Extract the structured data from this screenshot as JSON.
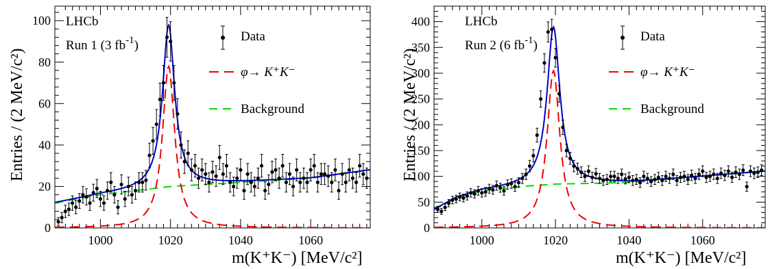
{
  "chart_data": [
    {
      "type": "scatter",
      "experiment_label": "LHCb",
      "run_label_text": "Run 1 (3 fb",
      "run_label_exp": "-1",
      "run_label_close": ")",
      "ylabel": "Entries / (2 MeV/c²)",
      "xlabel": "m(K⁺K⁻) [MeV/c²]",
      "xlim": [
        987,
        1077
      ],
      "ylim": [
        0,
        107
      ],
      "xticks": [
        1000,
        1020,
        1040,
        1060
      ],
      "yticks": [
        0,
        20,
        40,
        60,
        80,
        100
      ],
      "legend": {
        "data": "Data",
        "signal": "φ→ K⁺K⁻",
        "background": "Background"
      },
      "colors": {
        "data": "#000000",
        "total": "#0000cc",
        "signal": "#ee0000",
        "background": "#00dd00"
      },
      "points": {
        "x": [
          988,
          989,
          990,
          991,
          992,
          993,
          994,
          995,
          996,
          997,
          998,
          999,
          1000,
          1001,
          1002,
          1003,
          1004,
          1005,
          1006,
          1007,
          1008,
          1009,
          1010,
          1011,
          1012,
          1013,
          1014,
          1015,
          1016,
          1017,
          1018,
          1019,
          1020,
          1021,
          1022,
          1023,
          1024,
          1025,
          1026,
          1027,
          1028,
          1029,
          1030,
          1031,
          1032,
          1033,
          1034,
          1035,
          1036,
          1037,
          1038,
          1039,
          1040,
          1041,
          1042,
          1043,
          1044,
          1045,
          1046,
          1047,
          1048,
          1049,
          1050,
          1051,
          1052,
          1053,
          1054,
          1055,
          1056,
          1057,
          1058,
          1059,
          1060,
          1061,
          1062,
          1063,
          1064,
          1065,
          1066,
          1067,
          1068,
          1069,
          1070,
          1071,
          1072,
          1073,
          1074,
          1075,
          1076
        ],
        "y": [
          3,
          5,
          8,
          9,
          12,
          10,
          13,
          16,
          15,
          12,
          17,
          19,
          14,
          12,
          18,
          22,
          16,
          10,
          21,
          14,
          20,
          16,
          18,
          22,
          22,
          23,
          35,
          42,
          50,
          62,
          70,
          92,
          90,
          70,
          55,
          40,
          32,
          36,
          28,
          30,
          24,
          28,
          26,
          22,
          27,
          25,
          34,
          26,
          30,
          22,
          20,
          24,
          28,
          18,
          26,
          22,
          20,
          24,
          30,
          18,
          21,
          27,
          28,
          24,
          30,
          22,
          26,
          20,
          28,
          22,
          24,
          22,
          28,
          30,
          22,
          26,
          26,
          25,
          22,
          28,
          18,
          26,
          22,
          28,
          24,
          22,
          30,
          26,
          24
        ],
        "err": [
          2,
          2.5,
          3,
          3,
          3.5,
          3.2,
          3.6,
          4,
          3.9,
          3.5,
          4.1,
          4.4,
          3.7,
          3.5,
          4.2,
          4.7,
          4,
          3.2,
          4.6,
          3.7,
          4.5,
          4,
          4.2,
          4.7,
          4.7,
          4.8,
          5.9,
          6.5,
          7.1,
          7.9,
          8.4,
          9.6,
          9.5,
          8.4,
          7.4,
          6.3,
          5.7,
          6,
          5.3,
          5.5,
          4.9,
          5.3,
          5.1,
          4.7,
          5.2,
          5,
          5.8,
          5.1,
          5.5,
          4.7,
          4.5,
          4.9,
          5.3,
          4.2,
          5.1,
          4.7,
          4.5,
          4.9,
          5.5,
          4.2,
          4.6,
          5.2,
          5.3,
          4.9,
          5.5,
          4.7,
          5.1,
          4.5,
          5.3,
          4.7,
          4.9,
          4.7,
          5.3,
          5.5,
          4.7,
          5.1,
          5.1,
          5,
          4.7,
          5.3,
          4.2,
          5.1,
          4.7,
          5.3,
          4.9,
          4.7,
          5.5,
          5.1,
          4.9
        ]
      },
      "model": {
        "peak_mass": 1019.46,
        "width": 4.2,
        "signal_peak": 78,
        "bg_points": [
          [
            987,
            12
          ],
          [
            1000,
            16
          ],
          [
            1020,
            20
          ],
          [
            1040,
            22
          ],
          [
            1060,
            24
          ],
          [
            1077,
            28
          ]
        ]
      }
    },
    {
      "type": "scatter",
      "experiment_label": "LHCb",
      "run_label_text": "Run 2 (6 fb",
      "run_label_exp": "-1",
      "run_label_close": ")",
      "ylabel": "Entries / (2 MeV/c²)",
      "xlabel": "m(K⁺K⁻) [MeV/c²]",
      "xlim": [
        987,
        1077
      ],
      "ylim": [
        0,
        430
      ],
      "xticks": [
        1000,
        1020,
        1040,
        1060
      ],
      "yticks": [
        0,
        50,
        100,
        150,
        200,
        250,
        300,
        350,
        400
      ],
      "legend": {
        "data": "Data",
        "signal": "φ→ K⁺K⁻",
        "background": "Background"
      },
      "colors": {
        "data": "#000000",
        "total": "#0000cc",
        "signal": "#ee0000",
        "background": "#00dd00"
      },
      "points": {
        "x": [
          988,
          989,
          990,
          991,
          992,
          993,
          994,
          995,
          996,
          997,
          998,
          999,
          1000,
          1001,
          1002,
          1003,
          1004,
          1005,
          1006,
          1007,
          1008,
          1009,
          1010,
          1011,
          1012,
          1013,
          1014,
          1015,
          1016,
          1017,
          1018,
          1019,
          1020,
          1021,
          1022,
          1023,
          1024,
          1025,
          1026,
          1027,
          1028,
          1029,
          1030,
          1031,
          1032,
          1033,
          1034,
          1035,
          1036,
          1037,
          1038,
          1039,
          1040,
          1041,
          1042,
          1043,
          1044,
          1045,
          1046,
          1047,
          1048,
          1049,
          1050,
          1051,
          1052,
          1053,
          1054,
          1055,
          1056,
          1057,
          1058,
          1059,
          1060,
          1061,
          1062,
          1063,
          1064,
          1065,
          1066,
          1067,
          1068,
          1069,
          1070,
          1071,
          1072,
          1073,
          1074,
          1075,
          1076
        ],
        "y": [
          36,
          32,
          40,
          48,
          54,
          56,
          60,
          58,
          62,
          68,
          66,
          72,
          68,
          70,
          76,
          74,
          82,
          78,
          72,
          84,
          86,
          80,
          88,
          96,
          104,
          120,
          140,
          180,
          250,
          320,
          380,
          385,
          330,
          260,
          195,
          150,
          135,
          120,
          115,
          108,
          100,
          110,
          98,
          105,
          96,
          92,
          94,
          100,
          100,
          96,
          104,
          95,
          98,
          92,
          94,
          88,
          100,
          96,
          90,
          94,
          98,
          92,
          100,
          96,
          104,
          92,
          98,
          100,
          94,
          102,
          96,
          104,
          110,
          98,
          100,
          104,
          96,
          106,
          102,
          110,
          98,
          108,
          104,
          112,
          80,
          110,
          106,
          108,
          112
        ],
        "err": [
          6,
          5.7,
          6.3,
          6.9,
          7.3,
          7.5,
          7.7,
          7.6,
          7.9,
          8.2,
          8.1,
          8.5,
          8.2,
          8.4,
          8.7,
          8.6,
          9.1,
          8.8,
          8.5,
          9.2,
          9.3,
          8.9,
          9.4,
          9.8,
          10.2,
          11,
          11.8,
          13.4,
          15.8,
          17.9,
          19.5,
          19.6,
          18.2,
          16.1,
          14,
          12.2,
          11.6,
          11,
          10.7,
          10.4,
          10,
          10.5,
          9.9,
          10.2,
          9.8,
          9.6,
          9.7,
          10,
          10,
          9.8,
          10.2,
          9.7,
          9.9,
          9.6,
          9.7,
          9.4,
          10,
          9.8,
          9.5,
          9.7,
          9.9,
          9.6,
          10,
          9.8,
          10.2,
          9.6,
          9.9,
          10,
          9.7,
          10.1,
          9.8,
          10.2,
          10.5,
          9.9,
          10,
          10.2,
          9.8,
          10.3,
          10.1,
          10.5,
          9.9,
          10.4,
          10.2,
          10.6,
          8.9,
          10.5,
          10.3,
          10.4,
          10.6
        ]
      },
      "model": {
        "peak_mass": 1019.46,
        "width": 4.2,
        "signal_peak": 305,
        "bg_points": [
          [
            987,
            35
          ],
          [
            993,
            58
          ],
          [
            1000,
            72
          ],
          [
            1010,
            80
          ],
          [
            1020,
            85
          ],
          [
            1040,
            88
          ],
          [
            1060,
            100
          ],
          [
            1077,
            110
          ]
        ]
      }
    }
  ]
}
